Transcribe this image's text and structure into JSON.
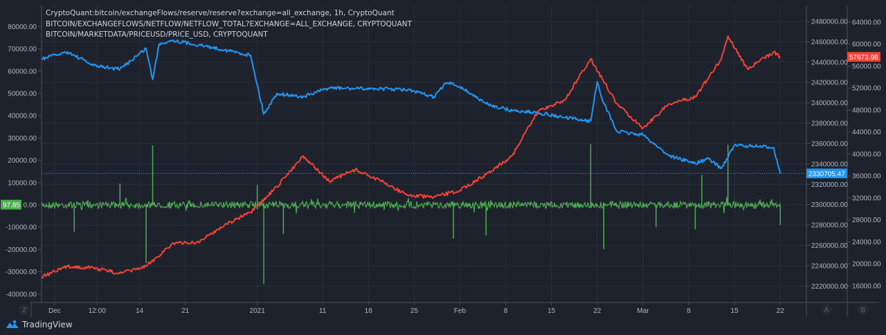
{
  "legend": {
    "line1": "CryptoQuant:bitcoin/exchangeFlows/reserve/reserve?exchange=all_exchange, 1h, CryptoQuant",
    "line2": "BITCOIN/EXCHANGEFLOWS/NETFLOW/NETFLOW_TOTAL?EXCHANGE=ALL_EXCHANGE, CRYPTOQUANT",
    "line3": "BITCOIN/MARKETDATA/PRICEUSD/PRICE_USD, CRYPTOQUANT"
  },
  "branding": {
    "logo_text": "TradingView"
  },
  "scale_buttons": {
    "left": "Z",
    "a": "A",
    "b": "B"
  },
  "colors": {
    "background": "#1e222d",
    "reserve": "#2196f3",
    "netflow": "#4caf50",
    "price": "#f44336",
    "grid": "#2a2e39",
    "text": "#b2b5be"
  },
  "chart_data": {
    "type": "line",
    "xlim": [
      "2020-11-29",
      "2021-03-26"
    ],
    "grid": true,
    "x_ticks": [
      {
        "date": "2020-12-01",
        "label": "Dec"
      },
      {
        "date": "2020-12-07T12:00",
        "label": "12:00"
      },
      {
        "date": "2020-12-14",
        "label": "14"
      },
      {
        "date": "2020-12-21",
        "label": "21"
      },
      {
        "date": "2021-01-01",
        "label": "2021"
      },
      {
        "date": "2021-01-11",
        "label": "11"
      },
      {
        "date": "2021-01-18",
        "label": "18"
      },
      {
        "date": "2021-01-25",
        "label": "25"
      },
      {
        "date": "2021-02-01",
        "label": "Feb"
      },
      {
        "date": "2021-02-08",
        "label": "8"
      },
      {
        "date": "2021-02-15",
        "label": "15"
      },
      {
        "date": "2021-02-22",
        "label": "22"
      },
      {
        "date": "2021-03-01",
        "label": "Mar"
      },
      {
        "date": "2021-03-08",
        "label": "8"
      },
      {
        "date": "2021-03-15",
        "label": "15"
      },
      {
        "date": "2021-03-22",
        "label": "22"
      }
    ],
    "axes": {
      "left": {
        "ylim": [
          -40000,
          80000
        ],
        "ticks": [
          "80000.00",
          "70000.00",
          "60000.00",
          "50000.00",
          "40000.00",
          "30000.00",
          "20000.00",
          "10000.00",
          "0.00",
          "-10000.00",
          "-20000.00",
          "-30000.00",
          "-40000.00"
        ],
        "tick_values": [
          80000,
          70000,
          60000,
          50000,
          40000,
          30000,
          20000,
          10000,
          0,
          -10000,
          -20000,
          -30000,
          -40000
        ]
      },
      "A": {
        "ticks": [
          "2480000.00",
          "2460000.00",
          "2440000.00",
          "2420000.00",
          "2400000.00",
          "2380000.00",
          "2360000.00",
          "2340000.00",
          "2320000.00",
          "2300000.00",
          "2280000.00",
          "2260000.00",
          "2240000.00",
          "2220000.00"
        ],
        "tick_values": [
          2480000,
          2460000,
          2440000,
          2420000,
          2400000,
          2380000,
          2360000,
          2340000,
          2320000,
          2300000,
          2280000,
          2260000,
          2240000,
          2220000
        ]
      },
      "B": {
        "ticks": [
          "64000.00",
          "60000.00",
          "56000.00",
          "52000.00",
          "48000.00",
          "44000.00",
          "40000.00",
          "36000.00",
          "32000.00",
          "28000.00",
          "24000.00",
          "20000.00",
          "16000.00"
        ],
        "tick_values": [
          64000,
          60000,
          56000,
          52000,
          48000,
          44000,
          40000,
          36000,
          32000,
          28000,
          24000,
          20000,
          16000
        ]
      }
    },
    "series": [
      {
        "name": "CryptoQuant:bitcoin/exchangeFlows/reserve/reserve?exchange=all_exchange",
        "axis": "A",
        "color": "#2196f3",
        "last_value_label": "2330705.47",
        "points": [
          [
            "2020-11-29",
            2443300
          ],
          [
            "2020-12-03",
            2450100
          ],
          [
            "2020-12-07",
            2436500
          ],
          [
            "2020-12-11",
            2433100
          ],
          [
            "2020-12-15",
            2453500
          ],
          [
            "2020-12-16",
            2423000
          ],
          [
            "2020-12-17",
            2458000
          ],
          [
            "2020-12-19",
            2461600
          ],
          [
            "2020-12-23",
            2456900
          ],
          [
            "2020-12-27",
            2452100
          ],
          [
            "2020-12-31",
            2446700
          ],
          [
            "2021-01-02",
            2388900
          ],
          [
            "2021-01-04",
            2409300
          ],
          [
            "2021-01-08",
            2405900
          ],
          [
            "2021-01-12",
            2414700
          ],
          [
            "2021-01-16",
            2414000
          ],
          [
            "2021-01-20",
            2414000
          ],
          [
            "2021-01-24",
            2412700
          ],
          [
            "2021-01-28",
            2405900
          ],
          [
            "2021-01-30",
            2420000
          ],
          [
            "2021-02-01",
            2416100
          ],
          [
            "2021-02-05",
            2399100
          ],
          [
            "2021-02-09",
            2392300
          ],
          [
            "2021-02-13",
            2390400
          ],
          [
            "2021-02-17",
            2385500
          ],
          [
            "2021-02-21",
            2382100
          ],
          [
            "2021-02-22",
            2420800
          ],
          [
            "2021-02-23",
            2400000
          ],
          [
            "2021-02-25",
            2371900
          ],
          [
            "2021-03-01",
            2368500
          ],
          [
            "2021-03-05",
            2348100
          ],
          [
            "2021-03-09",
            2340600
          ],
          [
            "2021-03-11",
            2345000
          ],
          [
            "2021-03-13",
            2335800
          ],
          [
            "2021-03-15",
            2358300
          ],
          [
            "2021-03-21",
            2356200
          ],
          [
            "2021-03-22",
            2330705
          ]
        ]
      },
      {
        "name": "BITCOIN/EXCHANGEFLOWS/NETFLOW/NETFLOW_TOTAL?EXCHANGE=ALL_EXCHANGE",
        "axis": "left",
        "color": "#4caf50",
        "last_value_label": "97.85",
        "baseline": 0,
        "spikes": [
          [
            "2020-12-04",
            -12100
          ],
          [
            "2020-12-11",
            9600
          ],
          [
            "2020-12-15",
            -26000
          ],
          [
            "2020-12-16",
            26700
          ],
          [
            "2021-01-01",
            9000
          ],
          [
            "2021-01-02",
            -35400
          ],
          [
            "2021-01-05",
            -13000
          ],
          [
            "2021-01-31",
            -15200
          ],
          [
            "2021-02-05",
            -13700
          ],
          [
            "2021-02-21",
            27300
          ],
          [
            "2021-02-23",
            -19900
          ],
          [
            "2021-03-03",
            -10000
          ],
          [
            "2021-03-09",
            -11000
          ],
          [
            "2021-03-10",
            13400
          ],
          [
            "2021-03-14",
            27000
          ],
          [
            "2021-03-22",
            -9000
          ]
        ]
      },
      {
        "name": "BITCOIN/MARKETDATA/PRICEUSD/PRICE_USD",
        "axis": "B",
        "color": "#f44336",
        "last_value_label": "57673.98",
        "points": [
          [
            "2020-11-29",
            17632
          ],
          [
            "2020-12-03",
            19522
          ],
          [
            "2020-12-07",
            19270
          ],
          [
            "2020-12-11",
            18262
          ],
          [
            "2020-12-15",
            19522
          ],
          [
            "2020-12-19",
            23680
          ],
          [
            "2020-12-23",
            23932
          ],
          [
            "2020-12-27",
            27082
          ],
          [
            "2020-12-31",
            29350
          ],
          [
            "2021-01-04",
            34012
          ],
          [
            "2021-01-08",
            39682
          ],
          [
            "2021-01-12",
            35020
          ],
          [
            "2021-01-16",
            37162
          ],
          [
            "2021-01-20",
            35020
          ],
          [
            "2021-01-24",
            32500
          ],
          [
            "2021-01-28",
            32122
          ],
          [
            "2021-02-01",
            33382
          ],
          [
            "2021-02-05",
            36280
          ],
          [
            "2021-02-09",
            39682
          ],
          [
            "2021-02-13",
            47872
          ],
          [
            "2021-02-17",
            49762
          ],
          [
            "2021-02-21",
            57322
          ],
          [
            "2021-02-25",
            49132
          ],
          [
            "2021-03-01",
            44722
          ],
          [
            "2021-03-05",
            49132
          ],
          [
            "2021-03-09",
            50392
          ],
          [
            "2021-03-13",
            57322
          ],
          [
            "2021-03-14",
            61480
          ],
          [
            "2021-03-17",
            55432
          ],
          [
            "2021-03-21",
            58582
          ],
          [
            "2021-03-22",
            57674
          ]
        ]
      }
    ]
  }
}
